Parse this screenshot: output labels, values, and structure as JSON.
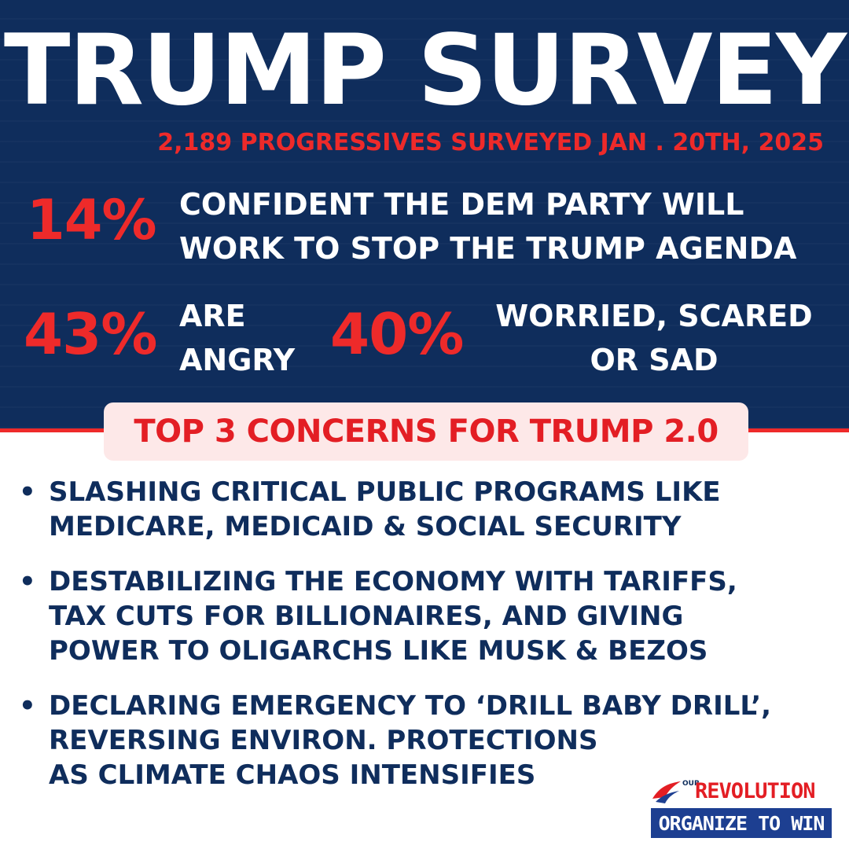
{
  "header": {
    "title": "TRUMP SURVEY",
    "subtitle": "2,189 PROGRESSIVES SURVEYED JAN . 20TH, 2025"
  },
  "stats": [
    {
      "value": "14%",
      "label": "CONFIDENT THE DEM PARTY WILL\nWORK TO STOP THE TRUMP AGENDA"
    },
    {
      "value": "43%",
      "label": "ARE\nANGRY"
    },
    {
      "value": "40%",
      "label": "WORRIED, SCARED\nOR SAD"
    }
  ],
  "concerns": {
    "heading": "TOP 3 CONCERNS FOR TRUMP 2.0",
    "items": [
      "SLASHING CRITICAL PUBLIC PROGRAMS LIKE\nMEDICARE, MEDICAID & SOCIAL SECURITY",
      "DESTABILIZING THE ECONOMY WITH TARIFFS,\nTAX CUTS FOR BILLIONAIRES, AND GIVING\nPOWER TO OLIGARCHS LIKE MUSK & BEZOS",
      "DECLARING EMERGENCY TO ‘DRILL BABY DRILL’,\nREVERSING ENVIRON. PROTECTIONS\nAS CLIMATE CHAOS INTENSIFIES"
    ]
  },
  "logo": {
    "small": "OUR",
    "name": "REVOLUTION",
    "tagline": "ORGANIZE TO WIN"
  },
  "colors": {
    "navy": "#0f2d5c",
    "red": "#ee2a2a",
    "pink": "#fde8e8",
    "logo_blue": "#1d3f91"
  }
}
